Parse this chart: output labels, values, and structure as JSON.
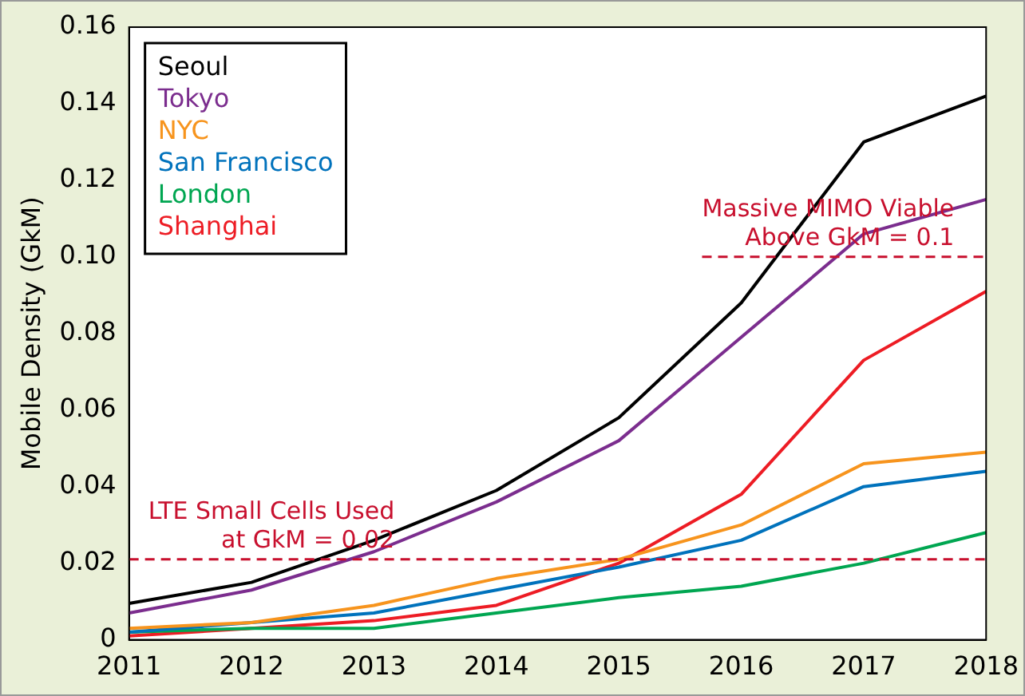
{
  "chart_data": {
    "type": "line",
    "ylabel": "Mobile Density (GkM)",
    "categories": [
      "2011",
      "2012",
      "2013",
      "2014",
      "2015",
      "2016",
      "2017",
      "2018"
    ],
    "series": [
      {
        "name": "Seoul",
        "color": "#000000",
        "values": [
          0.0095,
          0.015,
          0.026,
          0.039,
          0.058,
          0.088,
          0.13,
          0.142
        ]
      },
      {
        "name": "Tokyo",
        "color": "#7b2d8e",
        "values": [
          0.007,
          0.013,
          0.023,
          0.036,
          0.052,
          0.079,
          0.106,
          0.115
        ]
      },
      {
        "name": "NYC",
        "color": "#f7941d",
        "values": [
          0.003,
          0.0045,
          0.009,
          0.016,
          0.021,
          0.03,
          0.046,
          0.049
        ]
      },
      {
        "name": "San Francisco",
        "color": "#0072bc",
        "values": [
          0.002,
          0.0045,
          0.007,
          0.013,
          0.019,
          0.026,
          0.04,
          0.044
        ]
      },
      {
        "name": "London",
        "color": "#00a651",
        "values": [
          0.002,
          0.003,
          0.003,
          0.007,
          0.011,
          0.014,
          0.02,
          0.028
        ]
      },
      {
        "name": "Shanghai",
        "color": "#ed1c24",
        "values": [
          0.001,
          0.003,
          0.005,
          0.009,
          0.02,
          0.038,
          0.073,
          0.091
        ]
      }
    ],
    "ylim": [
      0,
      0.16
    ],
    "yticks": [
      0,
      0.02,
      0.04,
      0.06,
      0.08,
      {
        "value": 0.1,
        "label": "0.10"
      },
      0.12,
      0.14,
      0.16
    ],
    "ref_lines": [
      {
        "axis": "y",
        "value": 0.1,
        "label": "Massive MIMO Viable\nAbove GkM = 0.1",
        "color": "#c8102e",
        "line_style": "dashed"
      },
      {
        "axis": "y",
        "value": 0.021,
        "label": "LTE Small Cells Used\nat GkM = 0.02",
        "color": "#c8102e",
        "line_style": "dashed"
      }
    ],
    "grid": false,
    "legend": "top left",
    "marker": "none",
    "line_style": "solid"
  }
}
